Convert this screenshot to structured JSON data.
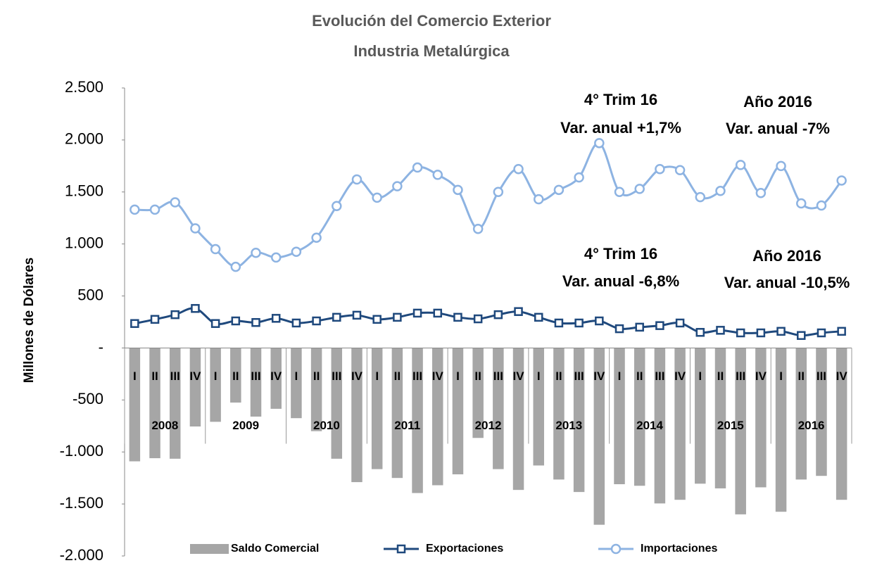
{
  "chart_data": {
    "type": "combo",
    "title": "Evolución del Comercio Exterior",
    "subtitle": "Industria Metalúrgica",
    "y_label": "Millones de Dólares",
    "categories": [
      "I",
      "II",
      "III",
      "IV",
      "I",
      "II",
      "III",
      "IV",
      "I",
      "II",
      "III",
      "IV",
      "I",
      "II",
      "III",
      "IV",
      "I",
      "II",
      "III",
      "IV",
      "I",
      "II",
      "III",
      "IV",
      "I",
      "II",
      "III",
      "IV",
      "I",
      "II",
      "III",
      "IV",
      "I",
      "II",
      "III",
      "IV"
    ],
    "years": [
      "2008",
      "2009",
      "2010",
      "2011",
      "2012",
      "2013",
      "2014",
      "2015",
      "2016"
    ],
    "ylim": [
      -2000,
      2500
    ],
    "yticks": [
      {
        "value": 2500,
        "label": "2.500"
      },
      {
        "value": 2000,
        "label": "2.000"
      },
      {
        "value": 1500,
        "label": "1.500"
      },
      {
        "value": 1000,
        "label": "1.000"
      },
      500,
      {
        "value": 0,
        "label": "-"
      },
      -500,
      {
        "value": -1000,
        "label": "-1.000"
      },
      {
        "value": -1500,
        "label": "-1.500"
      },
      {
        "value": -2000,
        "label": "-2.000"
      }
    ],
    "series": [
      {
        "name": "Saldo Comercial",
        "type": "bar",
        "color": "#a6a6a6",
        "values": [
          -1090,
          -1060,
          -1065,
          -755,
          -710,
          -525,
          -660,
          -585,
          -675,
          -800,
          -1065,
          -1290,
          -1165,
          -1250,
          -1395,
          -1320,
          -1215,
          -865,
          -1165,
          -1365,
          -1130,
          -1265,
          -1385,
          -1700,
          -1310,
          -1325,
          -1495,
          -1460,
          -1305,
          -1350,
          -1600,
          -1340,
          -1575,
          -1265,
          -1230,
          -1460
        ]
      },
      {
        "name": "Exportaciones",
        "type": "line",
        "marker": "square",
        "color": "#1f497d",
        "values": [
          235,
          275,
          320,
          380,
          235,
          260,
          245,
          285,
          240,
          260,
          295,
          315,
          275,
          295,
          335,
          335,
          295,
          280,
          320,
          350,
          295,
          240,
          240,
          260,
          185,
          200,
          215,
          240,
          150,
          170,
          145,
          145,
          160,
          120,
          145,
          160
        ]
      },
      {
        "name": "Importaciones",
        "type": "line",
        "marker": "circle",
        "color": "#8db3e2",
        "values": [
          1330,
          1330,
          1400,
          1150,
          950,
          780,
          915,
          870,
          925,
          1060,
          1365,
          1620,
          1445,
          1555,
          1735,
          1665,
          1520,
          1145,
          1500,
          1720,
          1430,
          1520,
          1640,
          1970,
          1500,
          1530,
          1720,
          1710,
          1450,
          1510,
          1760,
          1490,
          1750,
          1390,
          1370,
          1610
        ]
      }
    ],
    "annotations": [
      [
        "4° Trim 16",
        "Var. anual +1,7%"
      ],
      [
        "Año 2016",
        "Var. anual -7%"
      ],
      [
        "4° Trim 16",
        "Var. anual -6,8%"
      ],
      [
        "Año 2016",
        "Var. anual -10,5%"
      ]
    ]
  }
}
